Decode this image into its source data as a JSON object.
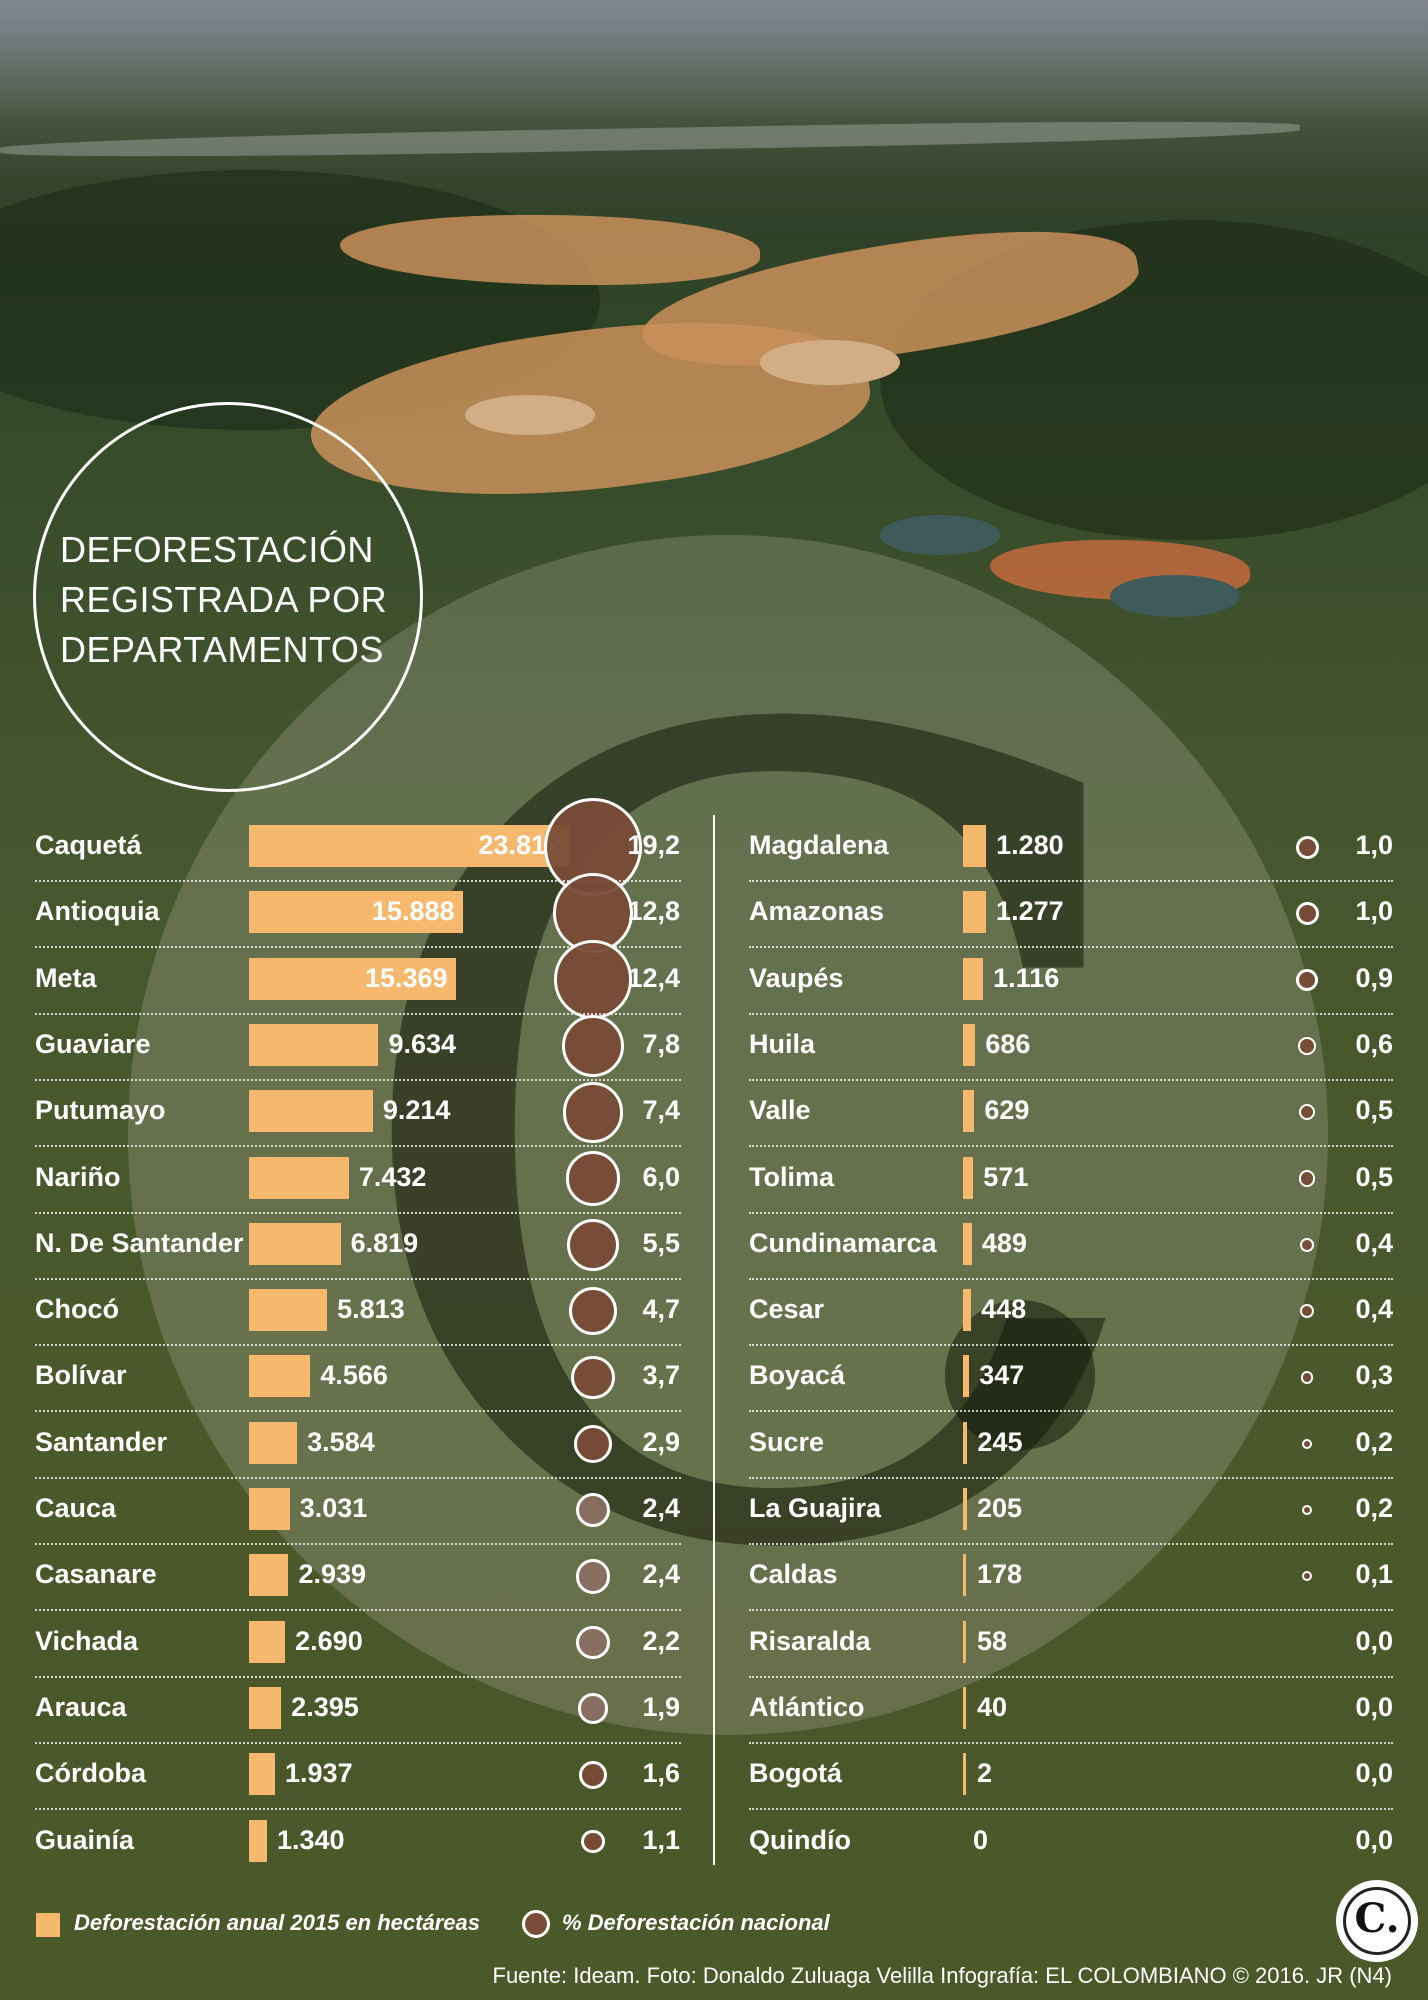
{
  "chart_data": {
    "type": "bar",
    "title_lines": [
      "DEFORESTACIÓN",
      "REGISTRADA POR",
      "DEPARTAMENTOS"
    ],
    "legend": [
      "Deforestación anual 2015 en hectáreas",
      "% Deforestación nacional"
    ],
    "series": [
      {
        "name": "Deforestación anual 2015 en hectáreas"
      },
      {
        "name": "% Deforestación nacional"
      }
    ],
    "left_column": [
      {
        "label": "Caquetá",
        "hectares": 23812,
        "hectares_text": "23.812",
        "pct": 19.2,
        "pct_text": "19,2"
      },
      {
        "label": "Antioquia",
        "hectares": 15888,
        "hectares_text": "15.888",
        "pct": 12.8,
        "pct_text": "12,8"
      },
      {
        "label": "Meta",
        "hectares": 15369,
        "hectares_text": "15.369",
        "pct": 12.4,
        "pct_text": "12,4"
      },
      {
        "label": "Guaviare",
        "hectares": 9634,
        "hectares_text": "9.634",
        "pct": 7.8,
        "pct_text": "7,8"
      },
      {
        "label": "Putumayo",
        "hectares": 9214,
        "hectares_text": "9.214",
        "pct": 7.4,
        "pct_text": "7,4"
      },
      {
        "label": "Nariño",
        "hectares": 7432,
        "hectares_text": "7.432",
        "pct": 6.0,
        "pct_text": "6,0"
      },
      {
        "label": "N. De Santander",
        "hectares": 6819,
        "hectares_text": "6.819",
        "pct": 5.5,
        "pct_text": "5,5"
      },
      {
        "label": "Chocó",
        "hectares": 5813,
        "hectares_text": "5.813",
        "pct": 4.7,
        "pct_text": "4,7"
      },
      {
        "label": "Bolívar",
        "hectares": 4566,
        "hectares_text": "4.566",
        "pct": 3.7,
        "pct_text": "3,7"
      },
      {
        "label": "Santander",
        "hectares": 3584,
        "hectares_text": "3.584",
        "pct": 2.9,
        "pct_text": "2,9"
      },
      {
        "label": "Cauca",
        "hectares": 3031,
        "hectares_text": "3.031",
        "pct": 2.4,
        "pct_text": "2,4"
      },
      {
        "label": "Casanare",
        "hectares": 2939,
        "hectares_text": "2.939",
        "pct": 2.4,
        "pct_text": "2,4"
      },
      {
        "label": "Vichada",
        "hectares": 2690,
        "hectares_text": "2.690",
        "pct": 2.2,
        "pct_text": "2,2"
      },
      {
        "label": "Arauca",
        "hectares": 2395,
        "hectares_text": "2.395",
        "pct": 1.9,
        "pct_text": "1,9"
      },
      {
        "label": "Córdoba",
        "hectares": 1937,
        "hectares_text": "1.937",
        "pct": 1.6,
        "pct_text": "1,6"
      },
      {
        "label": "Guainía",
        "hectares": 1340,
        "hectares_text": "1.340",
        "pct": 1.1,
        "pct_text": "1,1"
      }
    ],
    "right_column": [
      {
        "label": "Magdalena",
        "hectares": 1280,
        "hectares_text": "1.280",
        "pct": 1.0,
        "pct_text": "1,0"
      },
      {
        "label": "Amazonas",
        "hectares": 1277,
        "hectares_text": "1.277",
        "pct": 1.0,
        "pct_text": "1,0"
      },
      {
        "label": "Vaupés",
        "hectares": 1116,
        "hectares_text": "1.116",
        "pct": 0.9,
        "pct_text": "0,9"
      },
      {
        "label": "Huila",
        "hectares": 686,
        "hectares_text": "686",
        "pct": 0.6,
        "pct_text": "0,6"
      },
      {
        "label": "Valle",
        "hectares": 629,
        "hectares_text": "629",
        "pct": 0.5,
        "pct_text": "0,5"
      },
      {
        "label": "Tolima",
        "hectares": 571,
        "hectares_text": "571",
        "pct": 0.5,
        "pct_text": "0,5"
      },
      {
        "label": "Cundinamarca",
        "hectares": 489,
        "hectares_text": "489",
        "pct": 0.4,
        "pct_text": "0,4"
      },
      {
        "label": "Cesar",
        "hectares": 448,
        "hectares_text": "448",
        "pct": 0.4,
        "pct_text": "0,4"
      },
      {
        "label": "Boyacá",
        "hectares": 347,
        "hectares_text": "347",
        "pct": 0.3,
        "pct_text": "0,3"
      },
      {
        "label": "Sucre",
        "hectares": 245,
        "hectares_text": "245",
        "pct": 0.2,
        "pct_text": "0,2"
      },
      {
        "label": "La Guajira",
        "hectares": 205,
        "hectares_text": "205",
        "pct": 0.2,
        "pct_text": "0,2"
      },
      {
        "label": "Caldas",
        "hectares": 178,
        "hectares_text": "178",
        "pct": 0.1,
        "pct_text": "0,1"
      },
      {
        "label": "Risaralda",
        "hectares": 58,
        "hectares_text": "58",
        "pct": 0.0,
        "pct_text": "0,0"
      },
      {
        "label": "Atlántico",
        "hectares": 40,
        "hectares_text": "40",
        "pct": 0.0,
        "pct_text": "0,0"
      },
      {
        "label": "Bogotá",
        "hectares": 2,
        "hectares_text": "2",
        "pct": 0.0,
        "pct_text": "0,0"
      },
      {
        "label": "Quindío",
        "hectares": 0,
        "hectares_text": "0",
        "pct": 0.0,
        "pct_text": "0,0"
      }
    ],
    "colors": {
      "bar": "#f6b86c",
      "bubble": "#7a4c3a",
      "text": "#ffffff"
    }
  },
  "footer": {
    "source": "Fuente: Ideam. Foto: Donaldo Zuluaga Velilla Infografía: EL COLOMBIANO © 2016. JR (N4)"
  }
}
